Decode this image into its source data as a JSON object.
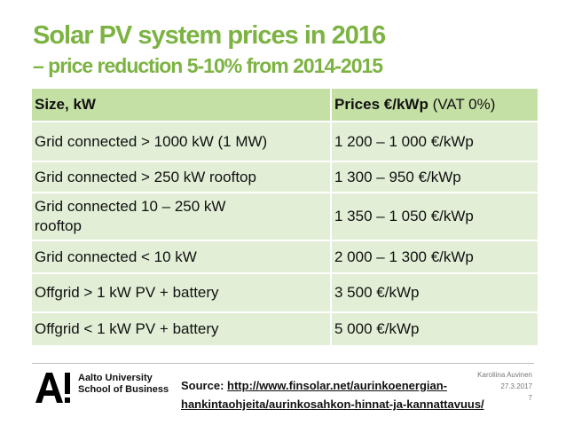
{
  "slide": {
    "title_line1": "Solar PV system prices in 2016",
    "title_line2": "– price reduction 5-10% from 2014-2015",
    "accent_color": "#7cb342"
  },
  "table": {
    "header": {
      "size": "Size, kW",
      "prices_bold": "Prices €/kWp",
      "prices_normal": "(VAT 0%)"
    },
    "rows": [
      {
        "size": "Grid connected > 1000 kW (1 MW)",
        "price": "1 200 – 1 000 €/kWp"
      },
      {
        "size": "Grid connected > 250 kW rooftop",
        "price": "1 300 – 950 €/kWp"
      },
      {
        "size": "Grid connected 10 – 250 kW rooftop",
        "price": "1 350 – 1 050 €/kWp"
      },
      {
        "size": "Grid connected < 10 kW",
        "price": "2 000 – 1 300 €/kWp"
      },
      {
        "size": "Offgrid > 1 kW PV + battery",
        "price": "3 500 €/kWp"
      },
      {
        "size": "Offgrid < 1 kW PV + battery",
        "price": "5 000 €/kWp"
      }
    ]
  },
  "footer": {
    "logo_mark": "A!",
    "org_line1": "Aalto University",
    "org_line2": "School of Business",
    "source_label": "Source:",
    "source_url_line1": "http://www.finsolar.net/aurinkoenergian-",
    "source_url_line2": "hankintaohjeita/aurinkosahkon-hinnat-ja-kannattavuus/",
    "author": "Karoliina Auvinen",
    "date": "27.3.2017",
    "page_number": "7"
  }
}
